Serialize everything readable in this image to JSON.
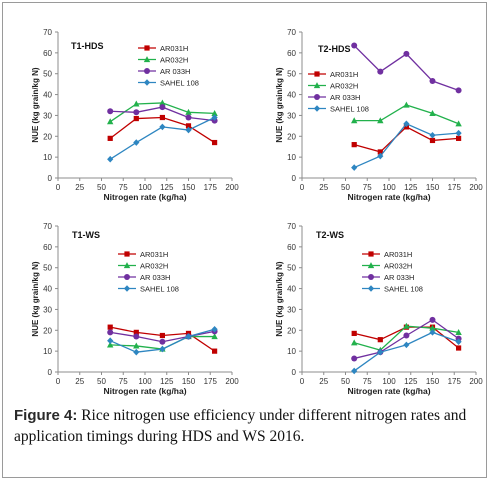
{
  "caption": {
    "label": "Figure 4:",
    "text": "Rice nitrogen use efficiency under different nitrogen rates and application timings during HDS and WS 2016."
  },
  "chart_data": [
    {
      "type": "line",
      "panel_label": "T1-HDS",
      "xlabel": "Nitrogen rate (kg/ha)",
      "ylabel": "NUE (kg grain/kg N)",
      "xlim": [
        0,
        200
      ],
      "ylim": [
        0,
        70
      ],
      "x_ticks": [
        0,
        25,
        50,
        75,
        100,
        125,
        150,
        175,
        200
      ],
      "y_ticks": [
        0,
        10,
        20,
        30,
        40,
        50,
        60,
        70
      ],
      "legend_position": "top-right",
      "x": [
        60,
        90,
        120,
        150,
        180
      ],
      "series": [
        {
          "name": "AR031H",
          "color": "#c00000",
          "marker": "square",
          "values": [
            19,
            28.5,
            29,
            25,
            17
          ]
        },
        {
          "name": "AR032H",
          "color": "#22b14c",
          "marker": "triangle",
          "values": [
            27,
            35.5,
            36,
            31.5,
            31
          ]
        },
        {
          "name": "AR 033H",
          "color": "#7030a0",
          "marker": "circle",
          "values": [
            32,
            31.5,
            34,
            29,
            27.5
          ]
        },
        {
          "name": "SAHEL 108",
          "color": "#2e86c1",
          "marker": "diamond",
          "values": [
            9,
            17,
            24.5,
            23,
            29
          ]
        }
      ]
    },
    {
      "type": "line",
      "panel_label": "T2-HDS",
      "xlabel": "Nitrogen rate (kg/ha)",
      "ylabel": "NUE (kg grain/kg N)",
      "xlim": [
        0,
        200
      ],
      "ylim": [
        0,
        70
      ],
      "x_ticks": [
        0,
        25,
        50,
        75,
        100,
        125,
        150,
        175,
        200
      ],
      "y_ticks": [
        0,
        10,
        20,
        30,
        40,
        50,
        60,
        70
      ],
      "legend_position": "left-center",
      "x": [
        60,
        90,
        120,
        150,
        180
      ],
      "series": [
        {
          "name": "AR031H",
          "color": "#c00000",
          "marker": "square",
          "values": [
            16,
            12.5,
            24.5,
            18,
            19
          ]
        },
        {
          "name": "AR032H",
          "color": "#22b14c",
          "marker": "triangle",
          "values": [
            27.5,
            27.5,
            35,
            31,
            26
          ]
        },
        {
          "name": "AR 033H",
          "color": "#7030a0",
          "marker": "circle",
          "values": [
            63.5,
            51,
            59.5,
            46.5,
            42
          ]
        },
        {
          "name": "SAHEL 108",
          "color": "#2e86c1",
          "marker": "diamond",
          "values": [
            5,
            10.5,
            26,
            20.5,
            21.5
          ]
        }
      ]
    },
    {
      "type": "line",
      "panel_label": "T1-WS",
      "xlabel": "Nitrogen rate (kg/ha)",
      "ylabel": "NUE (kg grain/kg N)",
      "xlim": [
        0,
        200
      ],
      "ylim": [
        0,
        70
      ],
      "x_ticks": [
        0,
        25,
        50,
        75,
        100,
        125,
        150,
        175,
        200
      ],
      "y_ticks": [
        0,
        10,
        20,
        30,
        40,
        50,
        60,
        70
      ],
      "legend_position": "top-center",
      "x": [
        60,
        90,
        120,
        150,
        180
      ],
      "series": [
        {
          "name": "AR031H",
          "color": "#c00000",
          "marker": "square",
          "values": [
            21.5,
            19,
            17.5,
            18.5,
            10
          ]
        },
        {
          "name": "AR032H",
          "color": "#22b14c",
          "marker": "triangle",
          "values": [
            13,
            12.5,
            11,
            17,
            17
          ]
        },
        {
          "name": "AR 033H",
          "color": "#7030a0",
          "marker": "circle",
          "values": [
            19,
            17,
            14.5,
            17,
            19.5
          ]
        },
        {
          "name": "SAHEL 108",
          "color": "#2e86c1",
          "marker": "diamond",
          "values": [
            15,
            9.5,
            11,
            17,
            20.5
          ]
        }
      ]
    },
    {
      "type": "line",
      "panel_label": "T2-WS",
      "xlabel": "Nitrogen rate (kg/ha)",
      "ylabel": "NUE (kg grain/kg N)",
      "xlim": [
        0,
        200
      ],
      "ylim": [
        0,
        70
      ],
      "x_ticks": [
        0,
        25,
        50,
        75,
        100,
        125,
        150,
        175,
        200
      ],
      "y_ticks": [
        0,
        10,
        20,
        30,
        40,
        50,
        60,
        70
      ],
      "legend_position": "top-center",
      "x": [
        60,
        90,
        120,
        150,
        180
      ],
      "series": [
        {
          "name": "AR031H",
          "color": "#c00000",
          "marker": "square",
          "values": [
            18.5,
            15.5,
            21.5,
            21.5,
            11.5
          ]
        },
        {
          "name": "AR032H",
          "color": "#22b14c",
          "marker": "triangle",
          "values": [
            14,
            10.5,
            22,
            21,
            19
          ]
        },
        {
          "name": "AR 033H",
          "color": "#7030a0",
          "marker": "circle",
          "values": [
            6.5,
            9.5,
            17.5,
            25,
            16
          ]
        },
        {
          "name": "SAHEL 108",
          "color": "#2e86c1",
          "marker": "diamond",
          "values": [
            0.5,
            9.5,
            13,
            19,
            14.5
          ]
        }
      ]
    }
  ]
}
